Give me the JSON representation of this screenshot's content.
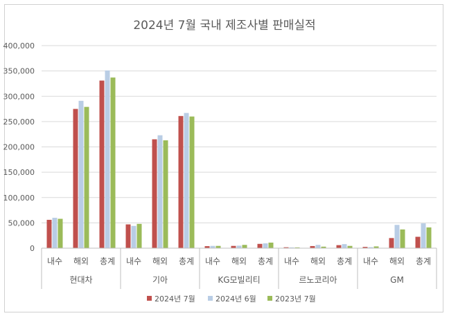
{
  "chart_data": {
    "type": "bar",
    "title": "2024년 7월 국내 제조사별 판매실적",
    "xlabel": "",
    "ylabel": "",
    "ylim": [
      0,
      400000
    ],
    "yticks": [
      "0",
      "50,000",
      "100,000",
      "150,000",
      "200,000",
      "250,000",
      "300,000",
      "350,000",
      "400,000"
    ],
    "ytick_values": [
      0,
      50000,
      100000,
      150000,
      200000,
      250000,
      300000,
      350000,
      400000
    ],
    "groups": [
      "현대차",
      "기아",
      "KG모빌리티",
      "르노코리아",
      "GM"
    ],
    "subcategories": [
      "내수",
      "해외",
      "총계"
    ],
    "grid": true,
    "legend_position": "bottom",
    "series": [
      {
        "name": "2024년 7월",
        "color": "#C0504D",
        "values": [
          56000,
          275000,
          331000,
          47000,
          215000,
          261000,
          4000,
          4500,
          8500,
          1800,
          4200,
          6000,
          2500,
          20000,
          22500
        ]
      },
      {
        "name": "2024년 6월",
        "color": "#B9CDE5",
        "values": [
          60000,
          291000,
          351000,
          44000,
          223000,
          267000,
          4500,
          5000,
          9500,
          1500,
          6500,
          8000,
          2000,
          46000,
          49000
        ]
      },
      {
        "name": "2023년 7월",
        "color": "#9BBB59",
        "values": [
          58000,
          279000,
          337000,
          48000,
          213000,
          260000,
          4500,
          6500,
          11000,
          1500,
          3000,
          4500,
          3500,
          37000,
          41000
        ]
      }
    ]
  }
}
